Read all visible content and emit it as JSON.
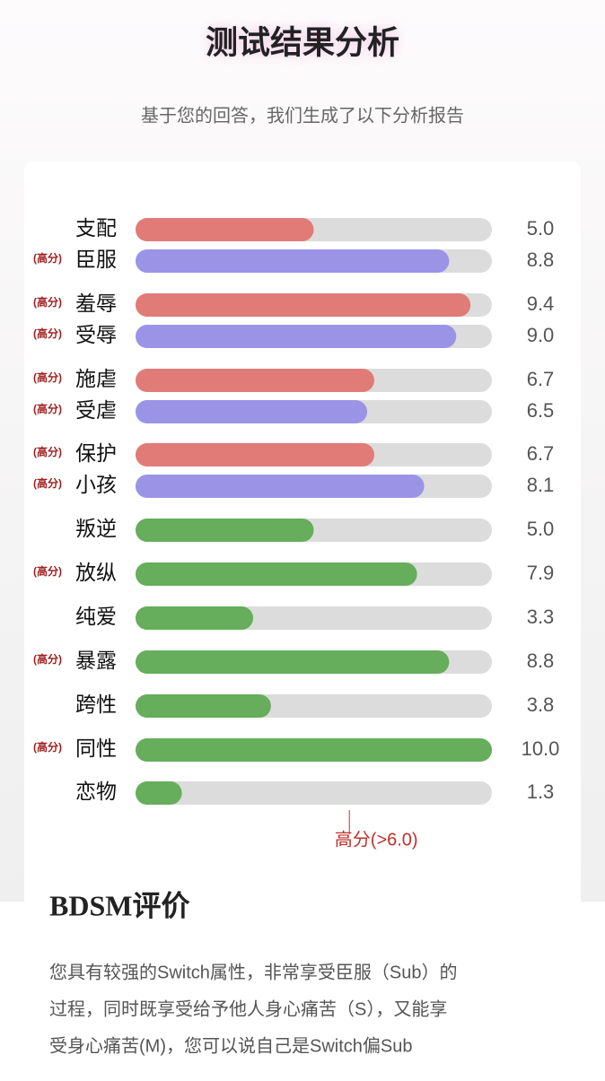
{
  "chart_data": {
    "type": "hbar",
    "title": "测试结果分析",
    "subtitle": "基于您的回答，我们生成了以下分析报告",
    "categories": [
      "支配",
      "臣服",
      "羞辱",
      "受辱",
      "施虐",
      "受虐",
      "保护",
      "小孩",
      "叛逆",
      "放纵",
      "纯爱",
      "暴露",
      "跨性",
      "同性",
      "恋物"
    ],
    "values": [
      5,
      8.8,
      9.4,
      9,
      6.7,
      6.5,
      6.7,
      8.1,
      5,
      7.9,
      3.3,
      8.8,
      3.8,
      10,
      1.3
    ],
    "value_labels": [
      "5.0",
      "8.8",
      "9.4",
      "9.0",
      "6.7",
      "6.5",
      "6.7",
      "8.1",
      "5.0",
      "7.9",
      "3.3",
      "8.8",
      "3.8",
      "10.0",
      "1.3"
    ],
    "colors": [
      "#e07b78",
      "#9b94e6",
      "#e07b78",
      "#9b94e6",
      "#e07b78",
      "#9b94e6",
      "#e07b78",
      "#9b94e6",
      "#66ad5c",
      "#66ad5c",
      "#66ad5c",
      "#66ad5c",
      "#66ad5c",
      "#66ad5c",
      "#66ad5c"
    ],
    "xlim": [
      0,
      10
    ],
    "high_tag": "(高分)",
    "threshold": {
      "value": 6,
      "label": "高分(>6.0)"
    }
  },
  "evaluation": {
    "heading": "BDSM评价",
    "lines": [
      "您具有较强的Switch属性，非常享受臣服（Sub）的",
      "过程，同时既享受给予他人身心痛苦（S），又能享",
      "受身心痛苦(M)，您可以说自己是Switch偏Sub"
    ]
  }
}
